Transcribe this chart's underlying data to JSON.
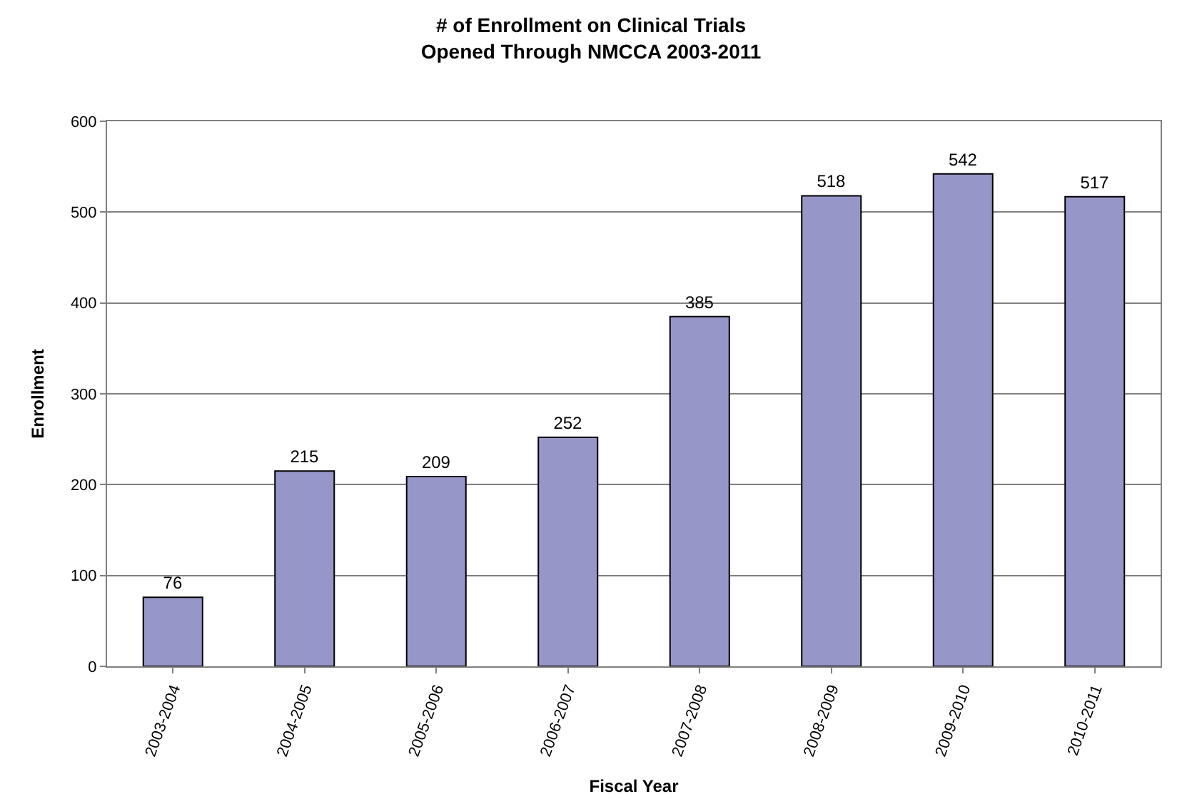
{
  "chart_data": {
    "type": "bar",
    "title": "# of Enrollment on Clinical Trials\nOpened Through NMCCA 2003-2011",
    "xlabel": "Fiscal Year",
    "ylabel": "Enrollment",
    "categories": [
      "2003-2004",
      "2004-2005",
      "2005-2006",
      "2006-2007",
      "2007-2008",
      "2008-2009",
      "2009-2010",
      "2010-2011"
    ],
    "values": [
      76,
      215,
      209,
      252,
      385,
      518,
      542,
      517
    ],
    "color": "#9696c8",
    "data_labels": true,
    "ylim": [
      0,
      600
    ],
    "yticks": [
      0,
      100,
      200,
      300,
      400,
      500,
      600
    ],
    "grid": "y"
  }
}
